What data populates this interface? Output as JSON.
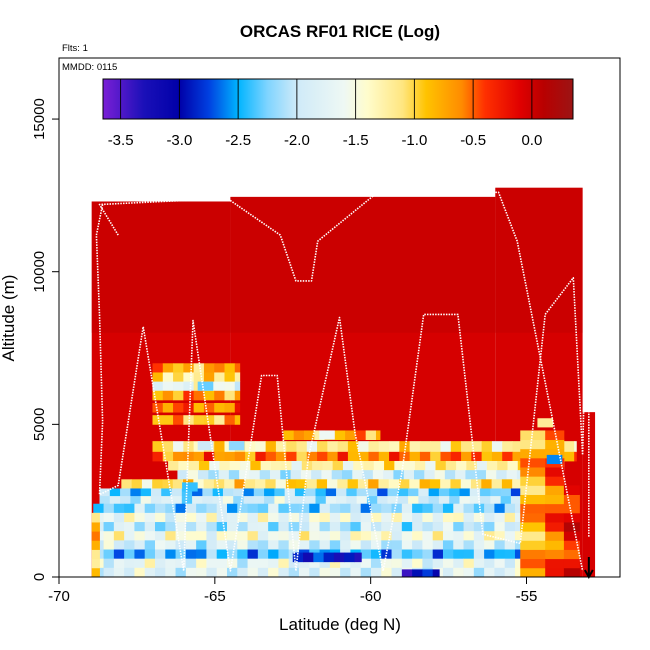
{
  "chart_data": {
    "type": "heatmap",
    "title": "ORCAS RF01 RICE (Log)",
    "xlabel": "Latitude (deg N)",
    "ylabel": "Altitude (m)",
    "xlim": [
      -70,
      -52
    ],
    "ylim": [
      0,
      17000
    ],
    "x_ticks": [
      -70,
      -65,
      -60,
      -55
    ],
    "x_tick_labels": [
      "-70",
      "-65",
      "-60",
      "-55"
    ],
    "y_ticks": [
      0,
      5000,
      10000,
      15000
    ],
    "y_tick_labels": [
      "0",
      "5000",
      "10000",
      "15000"
    ],
    "flights_label": "Flts: 1",
    "date_label": "MMDD: 0115",
    "colorbar": {
      "range": [
        -3.65,
        0.35
      ],
      "ticks": [
        -3.5,
        -3.0,
        -2.5,
        -2.0,
        -1.5,
        -1.0,
        -0.5,
        0.0
      ],
      "tick_labels": [
        "-3.5",
        "-3.0",
        "-2.5",
        "-2.0",
        "-1.5",
        "-1.0",
        "-0.5",
        "0.0"
      ],
      "stops": [
        {
          "v": -3.65,
          "color": "#7a1fd6"
        },
        {
          "v": -3.3,
          "color": "#1a10b8"
        },
        {
          "v": -3.0,
          "color": "#0000a8"
        },
        {
          "v": -2.75,
          "color": "#0040e0"
        },
        {
          "v": -2.5,
          "color": "#00b4ff"
        },
        {
          "v": -2.25,
          "color": "#7fd4ff"
        },
        {
          "v": -2.0,
          "color": "#cfeaf8"
        },
        {
          "v": -1.6,
          "color": "#eef8f4"
        },
        {
          "v": -1.4,
          "color": "#fffccc"
        },
        {
          "v": -1.1,
          "color": "#ffe680"
        },
        {
          "v": -0.9,
          "color": "#ffc300"
        },
        {
          "v": -0.6,
          "color": "#ff8c00"
        },
        {
          "v": -0.4,
          "color": "#ff3000"
        },
        {
          "v": -0.1,
          "color": "#e00000"
        },
        {
          "v": 0.1,
          "color": "#b80000"
        },
        {
          "v": 0.35,
          "color": "#9c1414"
        }
      ]
    },
    "background": {
      "value": -0.05,
      "upper_value": 0.05,
      "columns": [
        {
          "x0": -68.95,
          "x1": -64.5,
          "top": 12300
        },
        {
          "x0": -64.5,
          "x1": -56.0,
          "top": 12450
        },
        {
          "x0": -56.0,
          "x1": -53.2,
          "top": 12750
        },
        {
          "x0": -53.2,
          "x1": -52.8,
          "top": 5400
        }
      ]
    },
    "bands": [
      {
        "y0": 6700,
        "y1": 7000,
        "x0": -67.0,
        "x1": -64.2,
        "v": -0.8
      },
      {
        "y0": 6400,
        "y1": 6700,
        "x0": -67.0,
        "x1": -64.2,
        "v": -1.1
      },
      {
        "y0": 6100,
        "y1": 6400,
        "x0": -67.0,
        "x1": -64.2,
        "v": -1.6
      },
      {
        "y0": 5800,
        "y1": 6100,
        "x0": -67.0,
        "x1": -64.2,
        "v": -0.7
      },
      {
        "y0": 5400,
        "y1": 5700,
        "x0": -67.0,
        "x1": -64.2,
        "v": -0.6
      },
      {
        "y0": 5000,
        "y1": 5300,
        "x0": -67.0,
        "x1": -64.2,
        "v": -0.9
      },
      {
        "y0": 4500,
        "y1": 4800,
        "x0": -62.8,
        "x1": -59.7,
        "v": -0.8
      },
      {
        "y0": 4100,
        "y1": 4450,
        "x0": -67.0,
        "x1": -53.4,
        "v": -1.2
      },
      {
        "y0": 3800,
        "y1": 4100,
        "x0": -67.0,
        "x1": -53.4,
        "v": -0.6
      },
      {
        "y0": 3500,
        "y1": 3800,
        "x0": -66.5,
        "x1": -53.8,
        "v": -1.3
      },
      {
        "y0": 3200,
        "y1": 3500,
        "x0": -66.2,
        "x1": -54.0,
        "v": -1.9
      },
      {
        "y0": 2900,
        "y1": 3200,
        "x0": -68.0,
        "x1": -54.2,
        "v": -1.1
      },
      {
        "y0": 2650,
        "y1": 2900,
        "x0": -68.7,
        "x1": -54.5,
        "v": -2.3
      },
      {
        "y0": 2400,
        "y1": 2650,
        "x0": -68.7,
        "x1": -54.5,
        "v": -1.9
      },
      {
        "y0": 2100,
        "y1": 2400,
        "x0": -68.9,
        "x1": -54.8,
        "v": -2.2
      },
      {
        "y0": 1800,
        "y1": 2100,
        "x0": -68.9,
        "x1": -54.8,
        "v": -1.6
      },
      {
        "y0": 1500,
        "y1": 1800,
        "x0": -68.9,
        "x1": -54.8,
        "v": -2.0
      },
      {
        "y0": 1200,
        "y1": 1500,
        "x0": -68.9,
        "x1": -54.8,
        "v": -1.5
      },
      {
        "y0": 900,
        "y1": 1200,
        "x0": -68.9,
        "x1": -54.8,
        "v": -1.9
      },
      {
        "y0": 600,
        "y1": 900,
        "x0": -68.9,
        "x1": -54.8,
        "v": -2.4
      },
      {
        "y0": 300,
        "y1": 600,
        "x0": -68.9,
        "x1": -54.8,
        "v": -1.7
      },
      {
        "y0": 0,
        "y1": 300,
        "x0": -68.9,
        "x1": -54.8,
        "v": -1.8
      },
      {
        "y0": 500,
        "y1": 800,
        "x0": -62.5,
        "x1": -60.3,
        "v": -3.0
      },
      {
        "y0": 0,
        "y1": 250,
        "x0": -59.0,
        "x1": -57.8,
        "v": -3.0
      }
    ],
    "hotspots": [
      {
        "cx": -65.3,
        "cy": 6250,
        "v": -2.3
      },
      {
        "cx": -65.3,
        "cy": 4300,
        "v": -2.0
      },
      {
        "cx": -64.3,
        "cy": 4300,
        "v": -2.2
      },
      {
        "cx": -54.1,
        "cy": 3850,
        "v": -2.6
      },
      {
        "cx": -61.4,
        "cy": 4650,
        "v": -1.6
      },
      {
        "cx": -65.8,
        "cy": 2950,
        "v": -2.4
      },
      {
        "cx": -54.4,
        "cy": 5050,
        "v": -1.2
      }
    ],
    "edge_columns": [
      {
        "x0": -55.2,
        "x1": -54.4,
        "y0": 0,
        "y1": 4800,
        "v": -0.8
      },
      {
        "x0": -54.4,
        "x1": -53.8,
        "y0": 0,
        "y1": 4600,
        "v": -0.5
      },
      {
        "x0": -53.8,
        "x1": -53.3,
        "y0": 0,
        "y1": 3000,
        "v": -0.2
      },
      {
        "x0": -68.95,
        "x1": -68.7,
        "y0": 0,
        "y1": 2000,
        "v": -0.9
      }
    ],
    "flight_track": {
      "lat": [
        -68.6,
        -68.8,
        -68.7,
        -68.6,
        -68.7,
        -68.1,
        -67.3,
        -66.0,
        -65.7,
        -64.5,
        -63.5,
        -63.0,
        -62.4,
        -62.0,
        -61.0,
        -60.5,
        -59.6,
        -59.0,
        -58.3,
        -57.2,
        -56.4,
        -55.2,
        -54.4,
        -53.5,
        -53.2,
        -53.0,
        -53.0
      ],
      "alt": [
        12200,
        11200,
        8600,
        5100,
        2700,
        3000,
        8200,
        200,
        8400,
        200,
        6600,
        6600,
        200,
        3900,
        8500,
        4700,
        200,
        3400,
        8600,
        8600,
        1400,
        1100,
        8600,
        9800,
        4000,
        12600,
        1300
      ]
    },
    "flight_track_upper": {
      "lat": [
        -68.1,
        -68.7,
        -64.6,
        -62.9,
        -62.4,
        -61.9,
        -61.7,
        -59.9,
        -55.9,
        -55.3,
        -53.2
      ],
      "alt": [
        11200,
        12200,
        12400,
        11200,
        9700,
        9700,
        11000,
        12500,
        12600,
        11000,
        200
      ]
    },
    "arrow_at_lat": -53.0
  }
}
